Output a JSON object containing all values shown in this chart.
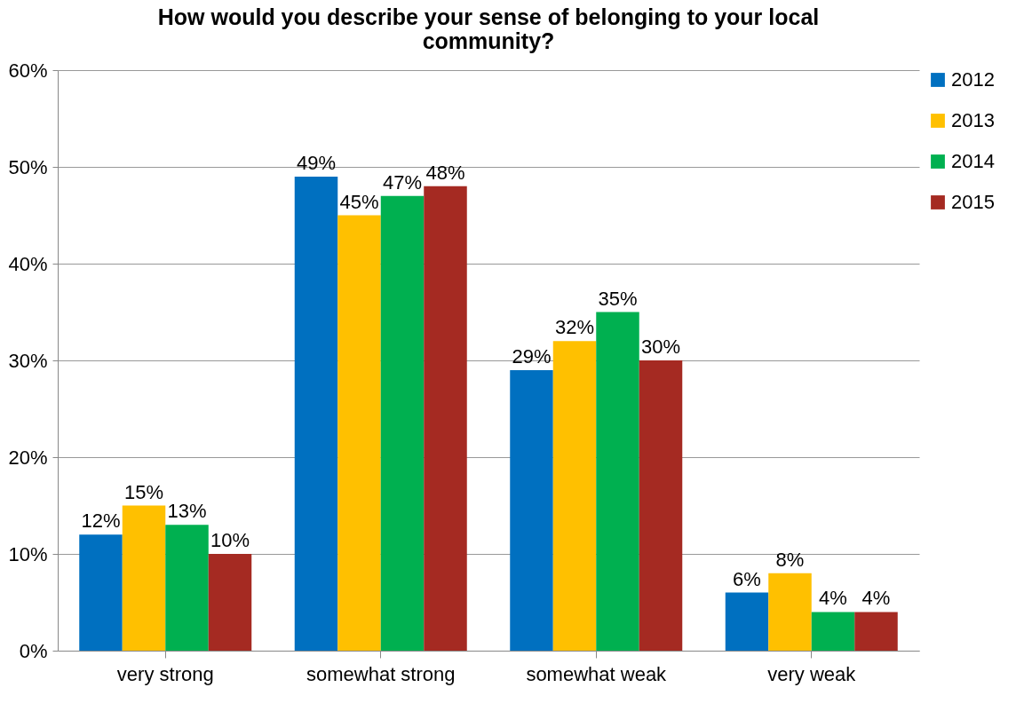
{
  "chart_data": {
    "type": "bar",
    "title": "How would you describe your sense of belonging to your local community?",
    "categories": [
      "very strong",
      "somewhat strong",
      "somewhat weak",
      "very weak"
    ],
    "series": [
      {
        "name": "2012",
        "color": "#0070c0",
        "values": [
          12,
          49,
          29,
          6
        ]
      },
      {
        "name": "2013",
        "color": "#ffc000",
        "values": [
          15,
          45,
          32,
          8
        ]
      },
      {
        "name": "2014",
        "color": "#00b050",
        "values": [
          13,
          47,
          35,
          4
        ]
      },
      {
        "name": "2015",
        "color": "#a52a22",
        "values": [
          10,
          48,
          30,
          4
        ]
      }
    ],
    "ylim": [
      0,
      60
    ],
    "yticks": [
      {
        "value": 0,
        "label": "0%"
      },
      {
        "value": 10,
        "label": "10%"
      },
      {
        "value": 20,
        "label": "20%"
      },
      {
        "value": 30,
        "label": "30%"
      },
      {
        "value": 40,
        "label": "40%"
      },
      {
        "value": 50,
        "label": "50%"
      },
      {
        "value": 60,
        "label": "60%"
      }
    ],
    "value_labels": [
      [
        "12%",
        "49%",
        "29%",
        "6%"
      ],
      [
        "15%",
        "45%",
        "32%",
        "8%"
      ],
      [
        "13%",
        "47%",
        "35%",
        "4%"
      ],
      [
        "10%",
        "48%",
        "30%",
        "4%"
      ]
    ],
    "grid": "y",
    "legend": "right"
  }
}
